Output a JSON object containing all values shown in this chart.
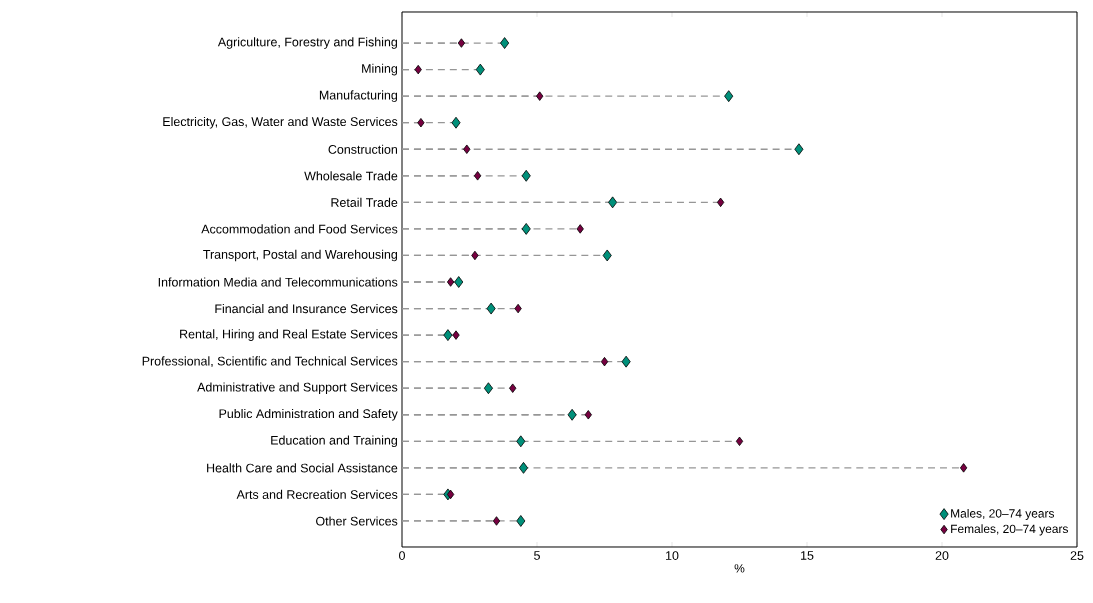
{
  "chart_data": {
    "type": "lollipop",
    "orientation": "horizontal",
    "xlabel": "%",
    "categories": [
      "Agriculture, Forestry and Fishing",
      "Mining",
      "Manufacturing",
      "Electricity, Gas, Water and Waste Services",
      "Construction",
      "Wholesale Trade",
      "Retail Trade",
      "Accommodation and Food Services",
      "Transport, Postal and Warehousing",
      "Information Media and Telecommunications",
      "Financial and Insurance Services",
      "Rental, Hiring and Real Estate Services",
      "Professional, Scientific and Technical Services",
      "Administrative and Support Services",
      "Public Administration and Safety",
      "Education and Training",
      "Health Care and Social Assistance",
      "Arts and Recreation Services",
      "Other Services"
    ],
    "series": [
      {
        "name": "Males, 20–74 years",
        "color": "#00907a",
        "values": [
          3.8,
          2.9,
          12.1,
          2.0,
          14.7,
          4.6,
          7.8,
          4.6,
          7.6,
          2.1,
          3.3,
          1.7,
          8.3,
          3.2,
          6.3,
          4.4,
          4.5,
          1.7,
          4.4
        ]
      },
      {
        "name": "Females, 20–74 years",
        "color": "#760040",
        "values": [
          2.2,
          0.6,
          5.1,
          0.7,
          2.4,
          2.8,
          11.8,
          6.6,
          2.7,
          1.8,
          4.3,
          2.0,
          7.5,
          4.1,
          6.9,
          12.5,
          20.8,
          1.8,
          3.5
        ]
      }
    ],
    "xlim": [
      0,
      25
    ],
    "xticks": [
      0,
      5,
      10,
      15,
      20,
      25
    ],
    "legend": "bottom right",
    "marker": "diamond",
    "line_style": "dashed"
  }
}
